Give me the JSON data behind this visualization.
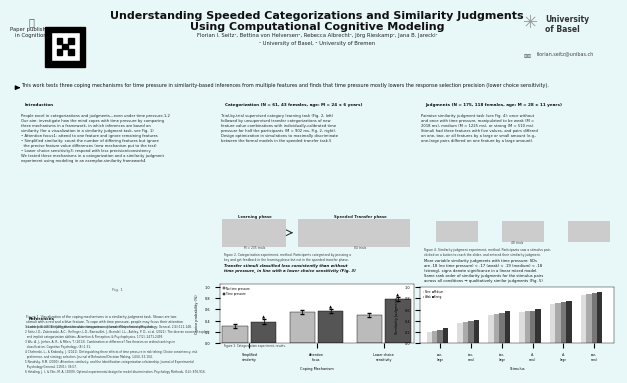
{
  "title_line1": "Understanding Speeded Categorizations and Similarity Judgments",
  "title_line2": "Using Computational Cognitive Modeling",
  "authors": "Florian I. Seitz¹, Bettina von Helversen², Rebecca Albrecht¹, Jörg Rieskamp¹, Jana B. Jarecki¹",
  "affiliations": "¹ University of Basel, ² University of Bremen",
  "header_bg": "#8ed8d8",
  "paper_label": "Paper published\nin Cognition:",
  "university": "University\nof Basel",
  "email": "florian.seitz@unibas.ch",
  "abstract_text": "This work tests three coping mechanisms for time pressure in similarity-based inferences from multiple features and finds that time pressure mostly lowers the response selection precision (lower choice sensitivity).",
  "abstract_bg": "#daf0f0",
  "section_header_bg": "#8ed8d8",
  "intro_title": "Introduction",
  "cat_title": "Categorization (N = 61, 43 females, age: M = 24 ± 6 years)",
  "judg_title": "Judgments (N = 175, 118 females, age: M = 28 ± 11 years)",
  "ref_title": "References",
  "body_bg": "#e8f8f8",
  "panel_bg": "#f5fdfd",
  "intro_text": "People excel in categorizations and judgments—even under time pressure.1,2\nOur aim: investigate how the mind copes with time pressure by comparing\nthree mechanisms in a framework, in which inferences are based on\nsimilarity (for a visualization in a similarity judgment task, see Fig. 1)\n• Attention focus1: attend to one feature and ignore remaining features\n• Simplified similarity: count the number of differing features but ignore\n  the precise feature value differences (new mechanism put to the test)\n• Lower choice sensitivity3: respond with less precision/consistency\nWe tested these mechanisms in a categorization and a similarity judgment\nexperiment using modeling in an exemplar-similarity framework4",
  "cat_text": "Trial-by-trial supervised category learning task (Fig. 2, left)\nfollowed by unsupervised transfer categorizations of new\nfeature value combinations with individually-calibrated time\npressure for half the participants (M = 902 ms, Fig. 2, right).\nDesign optimization in simulations to maximally discriminate\nbetween the formal models in the speeded transfer task.5",
  "judg_text": "Pairwise similarity judgment task (see Fig. 4): once without\nand once with time pressure, manipulated to be weak (M =\n2018 ms), medium (M = 1225 ms), or strong (M = 510 ms).\nStimuli had three features with five values, and pairs differed\non one, two, or all features by a large or small amount (e.g.,\none-large pairs differed on one feature by a large amount).",
  "judg_result_text": "More variable similarity judgments with time pressure: SDs\nare .18 (no time pressure) < .17 (weak) < .19 (medium) < .18\n(strong), signs denote significance in a linear mixed model.\nSame rank order of similarity judgments for the stimulus pairs\nacross all conditions → qualitatively similar judgments (Fig. 5)",
  "cat_result_text": "Transfer stimuli classified less consistently than without\ntime pressure, in line with a lower choice sensitivity (Fig. 3)",
  "ref_text": "1 Lashley, K. (1938). Categorization under time pressure. Journal of Experimental Psychology: General, 2(4):121-148.\n2 Seitz, I.D., Zakrzewski, A.C., Hellinger, L.D., Barrouillet, J., Brendel, L.L., Ashley, P. D., et al. (2022). The diverse source of explicit\n  and implicit categorization abilities. Attention & Perception, & Psychophysics, 17(2), 2471-2493.\n3 Wu, A. J., Jonker, A. R., & Milen, T. (2013). Combination or difference? Two theories on ordinal rankings in\n  classification. Cognitive Psychology, (8):1-31.\n4 Chefneski, L., & Krokosky, J. (2021). Distinguishing three effects of time pressure in risk taking: Choice consistency, risk\n  preference, and strategy selection. Journal of Behavioral Decision Making, 14(4), 53-104.\n5 Nosofsky, R.M. (2000). Attention, similarity, and the Identification-categorization relationship. Journal of Experimental\n  Psychology:General, 119(1): 39-57.\n6 Hotaling, J. I., & Fific, M. A. (2009). Optimal experimental design for model discrimination. Psychology Methods, (14): 876-916."
}
